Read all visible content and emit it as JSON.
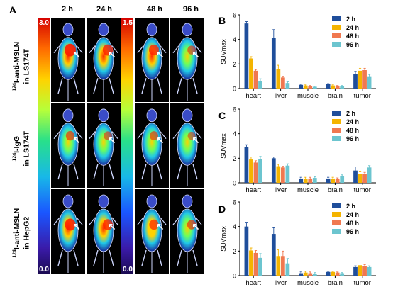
{
  "panel_a": {
    "letter": "A",
    "timepoints": [
      "2 h",
      "24 h",
      "48 h",
      "96 h"
    ],
    "rows": [
      {
        "label_sup": "124",
        "label_main": "I-anti-MSLN",
        "label_line2": "in LS174T"
      },
      {
        "label_sup": "124",
        "label_main": "I-IgG",
        "label_line2": "in LS174T"
      },
      {
        "label_sup": "124",
        "label_main": "I-anti-MSLN",
        "label_line2": "in HepG2"
      }
    ],
    "scale_left": {
      "max": "3.0",
      "min": "0.0"
    },
    "scale_right": {
      "max": "1.5",
      "min": "0.0"
    }
  },
  "chart_data": [
    {
      "letter": "B",
      "type": "bar",
      "ylabel": "SUVmax",
      "ylim": [
        0,
        6
      ],
      "yticks": [
        0,
        2,
        4,
        6
      ],
      "categories": [
        "heart",
        "liver",
        "muscle",
        "brain",
        "tumor"
      ],
      "legend_position": "top-right",
      "series": [
        {
          "name": "2 h",
          "color": "#1f4e9b",
          "values": [
            5.3,
            4.1,
            0.3,
            0.35,
            1.2
          ],
          "errors": [
            0.15,
            0.7,
            0.05,
            0.05,
            0.2
          ]
        },
        {
          "name": "24 h",
          "color": "#f4b400",
          "values": [
            2.45,
            1.6,
            0.25,
            0.25,
            1.45
          ],
          "errors": [
            0.15,
            0.3,
            0.05,
            0.05,
            0.2
          ]
        },
        {
          "name": "48 h",
          "color": "#f07850",
          "values": [
            1.45,
            0.9,
            0.2,
            0.2,
            1.5
          ],
          "errors": [
            0.1,
            0.1,
            0.05,
            0.05,
            0.15
          ]
        },
        {
          "name": "96 h",
          "color": "#6cc5cf",
          "values": [
            0.6,
            0.45,
            0.15,
            0.2,
            1.0
          ],
          "errors": [
            0.2,
            0.1,
            0.05,
            0.05,
            0.15
          ]
        }
      ]
    },
    {
      "letter": "C",
      "type": "bar",
      "ylabel": "SUVmax",
      "ylim": [
        0,
        6
      ],
      "yticks": [
        0,
        2,
        4,
        6
      ],
      "categories": [
        "heart",
        "liver",
        "muscle",
        "brain",
        "tumor"
      ],
      "legend_position": "top-right",
      "series": [
        {
          "name": "2 h",
          "color": "#1f4e9b",
          "values": [
            2.9,
            2.0,
            0.35,
            0.35,
            1.0
          ],
          "errors": [
            0.2,
            0.1,
            0.1,
            0.1,
            0.3
          ]
        },
        {
          "name": "24 h",
          "color": "#f4b400",
          "values": [
            1.9,
            1.35,
            0.35,
            0.35,
            0.75
          ],
          "errors": [
            0.2,
            0.15,
            0.1,
            0.1,
            0.15
          ]
        },
        {
          "name": "48 h",
          "color": "#f07850",
          "values": [
            1.65,
            1.25,
            0.35,
            0.3,
            0.7
          ],
          "errors": [
            0.15,
            0.1,
            0.1,
            0.1,
            0.15
          ]
        },
        {
          "name": "96 h",
          "color": "#6cc5cf",
          "values": [
            1.95,
            1.4,
            0.4,
            0.55,
            1.25
          ],
          "errors": [
            0.2,
            0.15,
            0.1,
            0.1,
            0.15
          ]
        }
      ]
    },
    {
      "letter": "D",
      "type": "bar",
      "ylabel": "SUVmax",
      "ylim": [
        0,
        6
      ],
      "yticks": [
        0,
        2,
        4,
        6
      ],
      "categories": [
        "heart",
        "liver",
        "muscle",
        "brain",
        "tumor"
      ],
      "legend_position": "top-right",
      "series": [
        {
          "name": "2 h",
          "color": "#1f4e9b",
          "values": [
            4.0,
            3.4,
            0.2,
            0.3,
            0.7
          ],
          "errors": [
            0.35,
            0.5,
            0.1,
            0.05,
            0.1
          ]
        },
        {
          "name": "24 h",
          "color": "#f4b400",
          "values": [
            2.05,
            1.6,
            0.25,
            0.3,
            0.85
          ],
          "errors": [
            0.2,
            0.5,
            0.1,
            0.05,
            0.1
          ]
        },
        {
          "name": "48 h",
          "color": "#f07850",
          "values": [
            1.85,
            1.6,
            0.2,
            0.25,
            0.8
          ],
          "errors": [
            0.2,
            0.4,
            0.1,
            0.05,
            0.1
          ]
        },
        {
          "name": "96 h",
          "color": "#6cc5cf",
          "values": [
            1.45,
            1.0,
            0.15,
            0.2,
            0.7
          ],
          "errors": [
            0.35,
            0.4,
            0.1,
            0.05,
            0.1
          ]
        }
      ]
    }
  ]
}
